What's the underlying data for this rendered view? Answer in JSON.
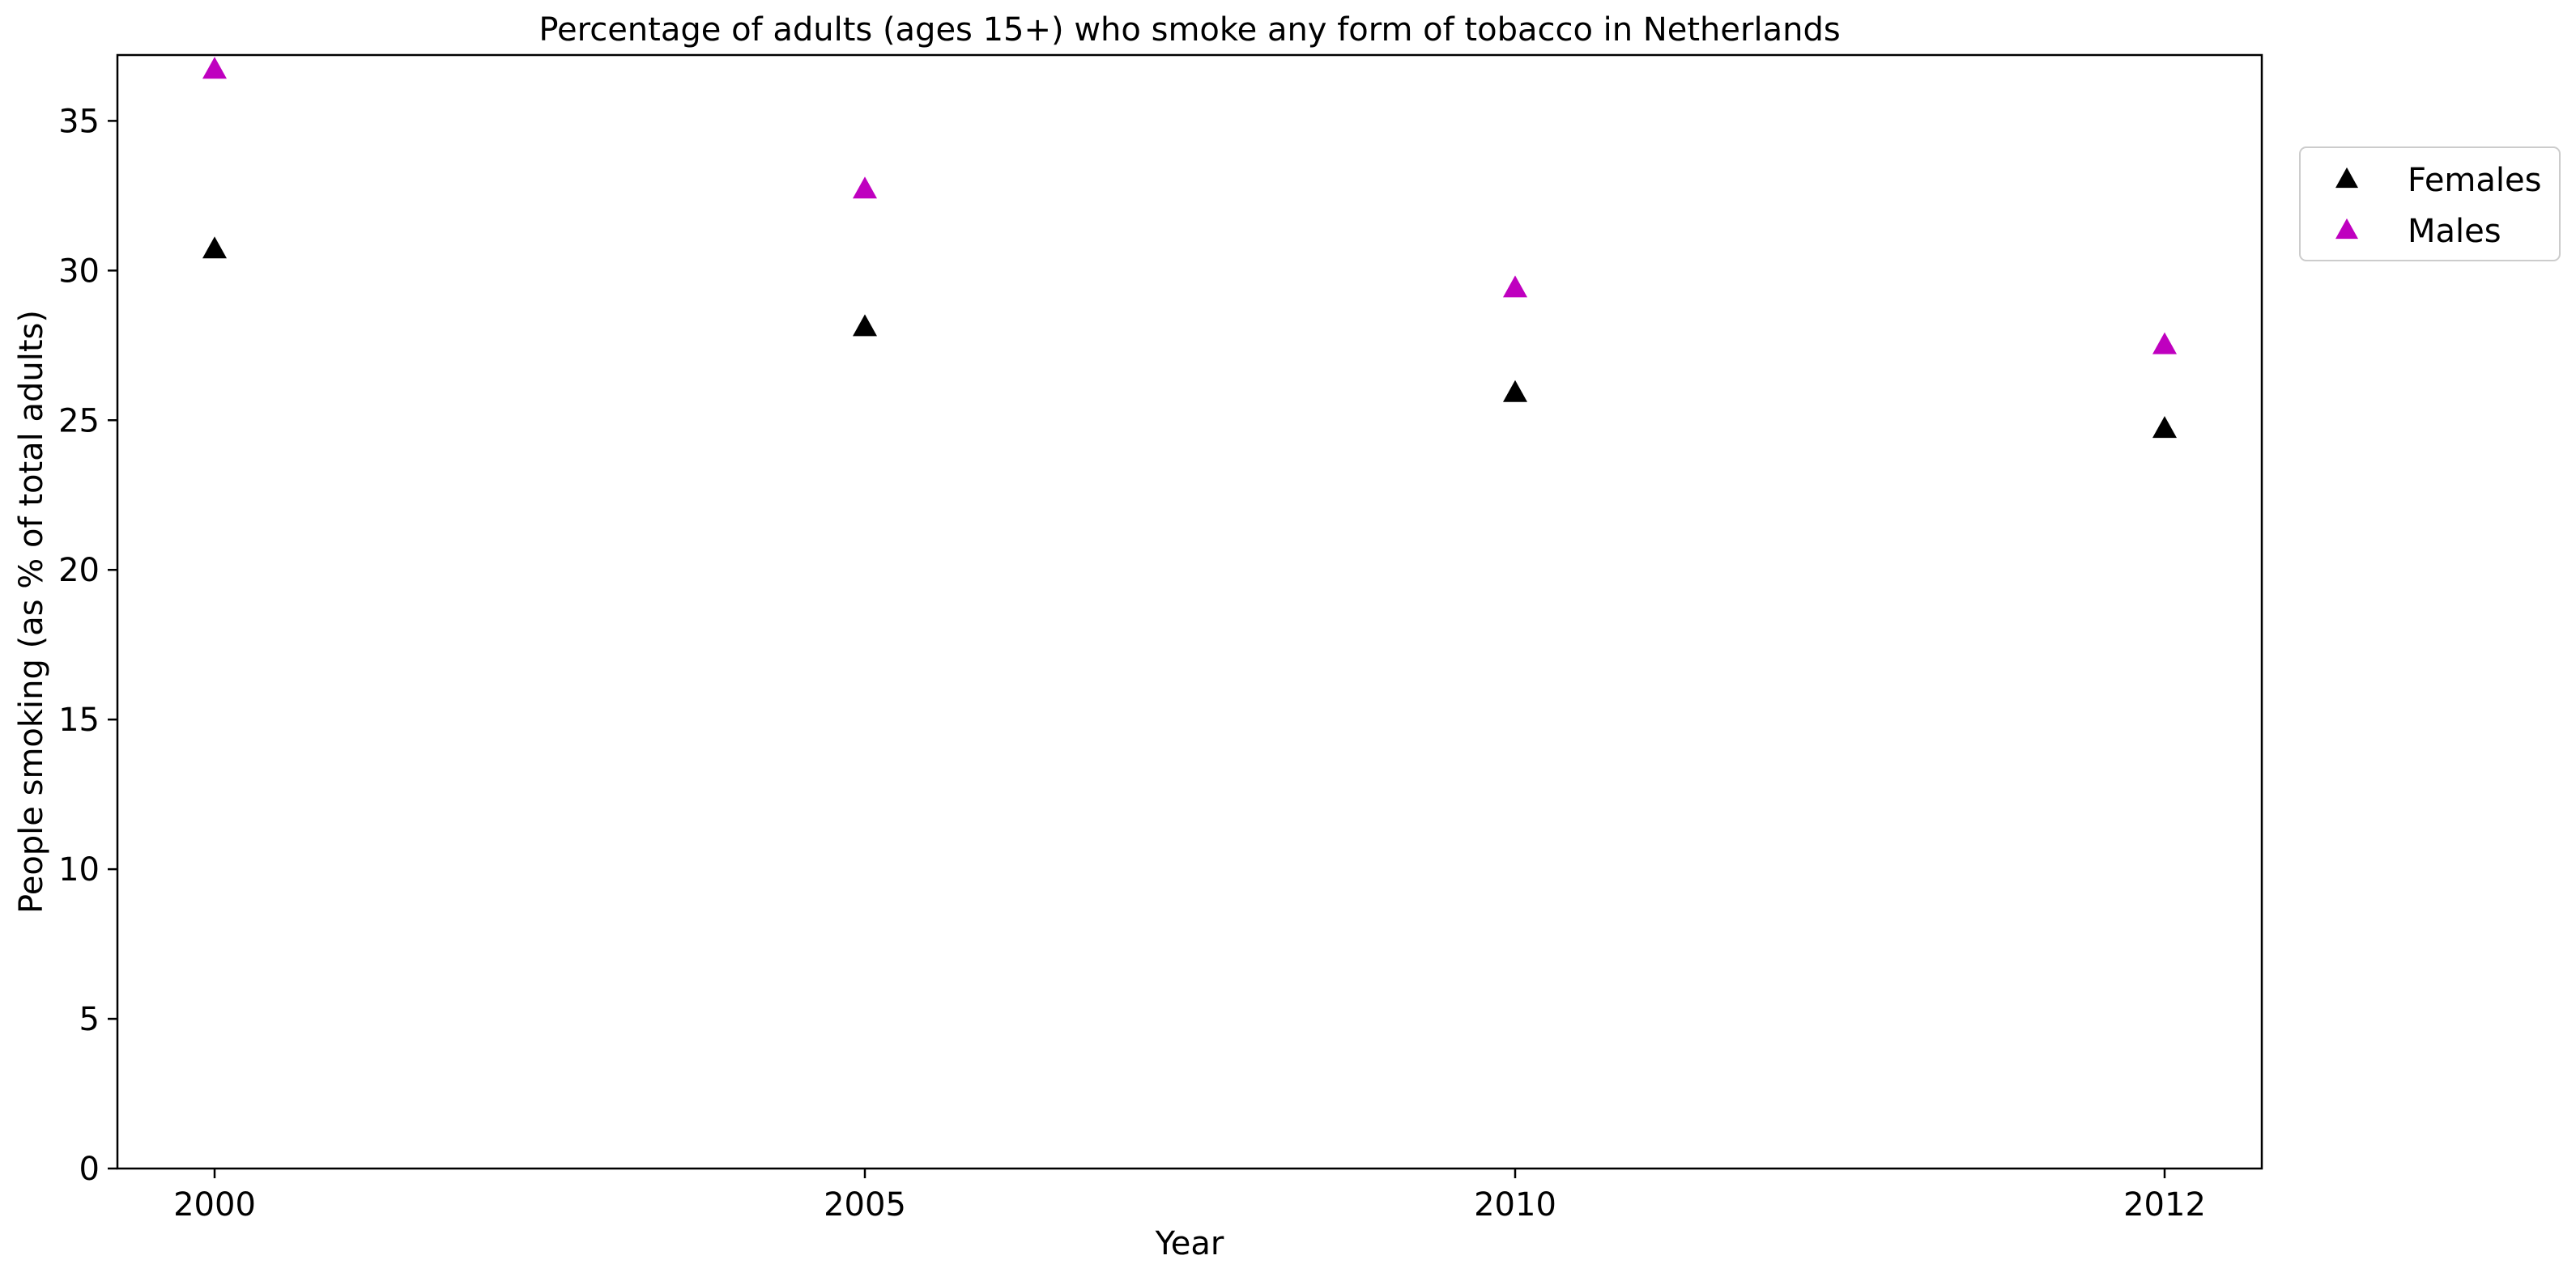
{
  "chart_data": {
    "type": "scatter",
    "title": "Percentage of adults (ages 15+) who smoke any form of tobacco in Netherlands",
    "xlabel": "Year",
    "ylabel": "People smoking (as % of total adults)",
    "categories": [
      "2000",
      "2005",
      "2010",
      "2012"
    ],
    "ylim": [
      0,
      37.2
    ],
    "yticks": [
      0,
      5,
      10,
      15,
      20,
      25,
      30,
      35
    ],
    "grid": false,
    "legend_position": "outside-top-right",
    "marker": "triangle",
    "series": [
      {
        "name": "Females",
        "color": "#000000",
        "values": [
          30.7,
          28.1,
          25.9,
          24.7
        ]
      },
      {
        "name": "Males",
        "color": "#bf00bf",
        "values": [
          36.7,
          32.7,
          29.4,
          27.5
        ]
      }
    ]
  }
}
